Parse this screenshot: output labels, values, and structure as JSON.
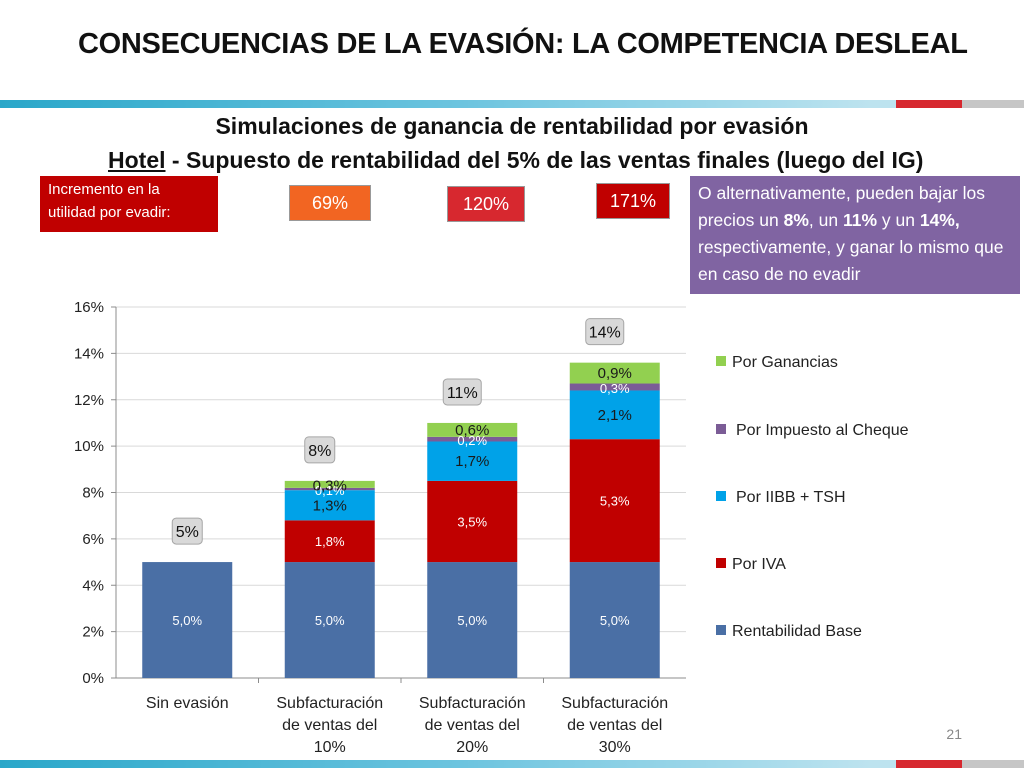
{
  "slide": {
    "title": "CONSECUENCIAS DE LA EVASIÓN: LA COMPETENCIA DESLEAL",
    "subtitle1": "Simulaciones de ganancia de rentabilidad por evasión",
    "subtitle2_underlined": "Hotel",
    "subtitle2_rest": " - Supuesto de rentabilidad del 5% de las ventas finales (luego del IG)",
    "increment_label": "Incremento en la utilidad por evadir:",
    "increments": [
      "69%",
      "120%",
      "171%"
    ],
    "alt_text": {
      "p1": "O alternativamente, pueden bajar los precios un ",
      "b1": "8%",
      "p2": ", un ",
      "b2": "11%",
      "p3": " y un ",
      "b3": "14%,",
      "p4": " respectivamente, y ganar lo mismo que en caso de no evadir"
    },
    "page_number": "21"
  },
  "chart_data": {
    "type": "bar",
    "stacked": true,
    "categories": [
      [
        "Sin evasión"
      ],
      [
        "Subfacturación",
        "de ventas del",
        "10%"
      ],
      [
        "Subfacturación",
        "de ventas del",
        "20%"
      ],
      [
        "Subfacturación",
        "de ventas del",
        "30%"
      ]
    ],
    "series": [
      {
        "name": "Rentabilidad Base",
        "color": "#4a6fa5",
        "label_color": "#ffffff",
        "values": [
          5.0,
          5.0,
          5.0,
          5.0
        ],
        "labels": [
          "5,0%",
          "5,0%",
          "5,0%",
          "5,0%"
        ]
      },
      {
        "name": "Por IVA",
        "color": "#c00000",
        "label_color": "#ffffff",
        "values": [
          0,
          1.8,
          3.5,
          5.3
        ],
        "labels": [
          "",
          "1,8%",
          "3,5%",
          "5,3%"
        ]
      },
      {
        "name": "Por IIBB + TSH",
        "color": "#00a2e8",
        "label_color": "#1a1a1a",
        "values": [
          0,
          1.3,
          1.7,
          2.1
        ],
        "labels": [
          "",
          "1,3%",
          "1,7%",
          "2,1%"
        ]
      },
      {
        "name": "Por Impuesto al Cheque",
        "color": "#7b5c96",
        "label_color": "#ffffff",
        "values": [
          0,
          0.1,
          0.2,
          0.3
        ],
        "labels": [
          "",
          "0,1%",
          "0,2%",
          "0,3%"
        ]
      },
      {
        "name": "Por Ganancias",
        "color": "#92d050",
        "label_color": "#1a1a1a",
        "values": [
          0,
          0.3,
          0.6,
          0.9
        ],
        "labels": [
          "",
          "0,3%",
          "0,6%",
          "0,9%"
        ]
      }
    ],
    "totals": [
      "5%",
      "8%",
      "11%",
      "14%"
    ],
    "ylim": [
      0,
      16
    ],
    "yticks": [
      "0%",
      "2%",
      "4%",
      "6%",
      "8%",
      "10%",
      "12%",
      "14%",
      "16%"
    ],
    "grid": true,
    "legend": "right",
    "legend_order": [
      "Por Ganancias",
      "Por Impuesto al Cheque",
      "Por IIBB + TSH",
      "Por IVA",
      "Rentabilidad Base"
    ]
  }
}
